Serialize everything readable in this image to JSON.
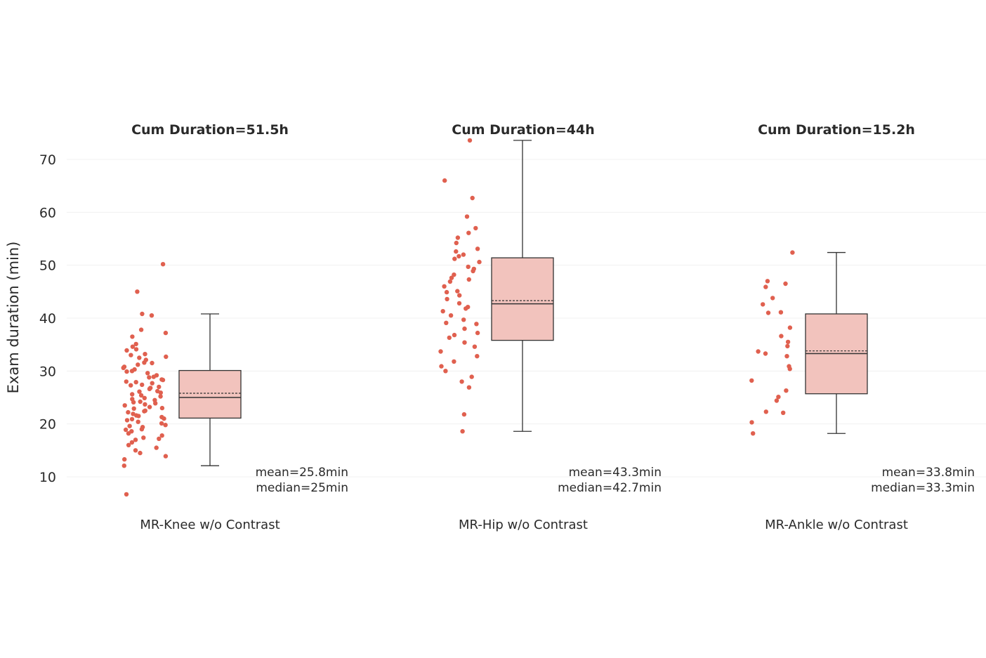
{
  "chart_data": {
    "type": "box",
    "ylabel": "Exam duration (min)",
    "ylim": [
      5,
      75
    ],
    "yticks": [
      10,
      20,
      30,
      40,
      50,
      60,
      70
    ],
    "grid": true,
    "colors": {
      "points": "#e0604f",
      "box_fill": "#f2c3bd",
      "box_stroke": "#333333"
    },
    "panels": [
      {
        "title": "Cum Duration=51.5h",
        "category": "MR-Knee w/o Contrast",
        "stats": {
          "min": 12.1,
          "q1": 21.1,
          "median": 25.0,
          "mean": 25.8,
          "q3": 30.1,
          "max": 40.8
        },
        "mean_label": "mean=25.8min",
        "median_label": "median=25min",
        "points": [
          50.2,
          45.0,
          40.8,
          40.5,
          37.8,
          37.2,
          36.5,
          35.1,
          34.6,
          33.9,
          33.2,
          33.0,
          32.5,
          32.1,
          31.6,
          31.2,
          30.8,
          30.3,
          30.0,
          29.6,
          29.2,
          28.8,
          28.4,
          28.0,
          27.7,
          27.3,
          27.0,
          26.6,
          26.2,
          25.9,
          25.6,
          25.2,
          24.9,
          24.5,
          24.2,
          23.9,
          23.5,
          23.2,
          22.9,
          22.5,
          22.2,
          21.9,
          21.6,
          21.3,
          21.0,
          20.7,
          20.4,
          20.1,
          19.8,
          19.4,
          19.0,
          18.6,
          18.2,
          17.8,
          17.4,
          17.0,
          16.5,
          16.0,
          15.5,
          15.0,
          14.5,
          13.9,
          13.3,
          12.1,
          6.7,
          24.1,
          26.8,
          28.9,
          31.5,
          23.0,
          20.9,
          27.9,
          24.7,
          22.4,
          29.9,
          25.4,
          18.9,
          21.5,
          26.1,
          30.6,
          34.1,
          19.6,
          23.7,
          27.4,
          32.7,
          17.2,
          28.3
        ]
      },
      {
        "title": "Cum Duration=44h",
        "category": "MR-Hip w/o Contrast",
        "stats": {
          "min": 18.6,
          "q1": 35.8,
          "median": 42.7,
          "mean": 43.3,
          "q3": 51.4,
          "max": 73.6
        },
        "mean_label": "mean=43.3min",
        "median_label": "median=42.7min",
        "points": [
          73.6,
          66.0,
          62.7,
          59.2,
          57.0,
          56.1,
          55.2,
          54.2,
          52.6,
          52.0,
          51.7,
          51.2,
          50.6,
          49.7,
          48.9,
          48.2,
          47.6,
          46.9,
          46.0,
          45.1,
          44.3,
          43.6,
          42.8,
          42.1,
          41.3,
          40.5,
          39.7,
          38.9,
          38.0,
          37.2,
          36.3,
          35.4,
          34.6,
          33.7,
          32.8,
          31.8,
          30.9,
          30.0,
          28.9,
          28.0,
          26.9,
          21.8,
          18.6,
          44.9,
          39.1,
          47.3,
          41.8,
          53.1,
          36.8,
          49.3
        ]
      },
      {
        "title": "Cum Duration=15.2h",
        "category": "MR-Ankle w/o Contrast",
        "stats": {
          "min": 18.2,
          "q1": 25.7,
          "median": 33.3,
          "mean": 33.8,
          "q3": 40.8,
          "max": 52.4
        },
        "mean_label": "mean=33.8min",
        "median_label": "median=33.3min",
        "points": [
          52.4,
          47.0,
          46.5,
          45.9,
          43.8,
          42.6,
          41.1,
          41.0,
          38.2,
          36.6,
          35.5,
          34.7,
          33.7,
          33.3,
          32.8,
          30.9,
          30.4,
          28.2,
          26.3,
          25.1,
          24.4,
          22.3,
          22.1,
          20.3,
          18.2
        ]
      }
    ]
  }
}
